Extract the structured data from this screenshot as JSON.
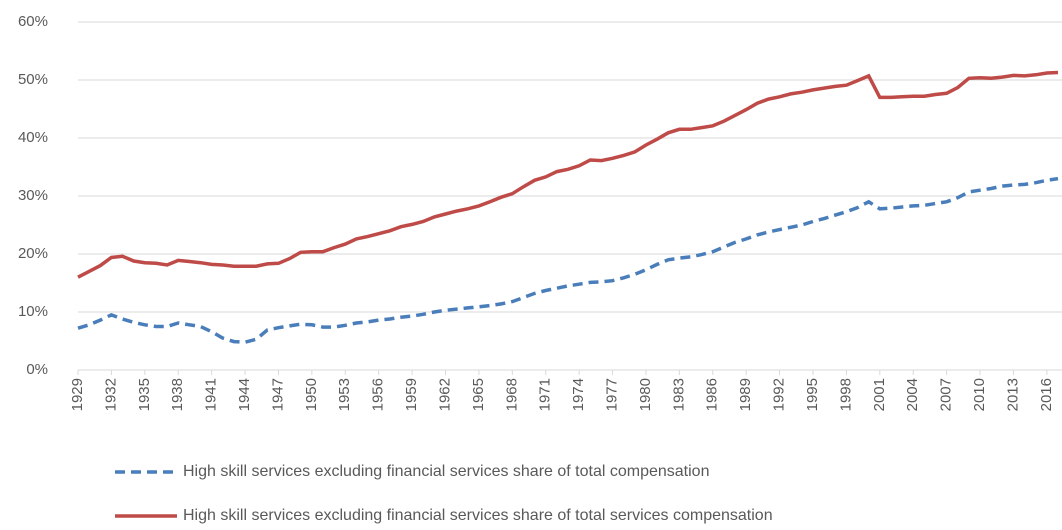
{
  "chart_data": {
    "type": "line",
    "x": [
      1929,
      1930,
      1931,
      1932,
      1933,
      1934,
      1935,
      1936,
      1937,
      1938,
      1939,
      1940,
      1941,
      1942,
      1943,
      1944,
      1945,
      1946,
      1947,
      1948,
      1949,
      1950,
      1951,
      1952,
      1953,
      1954,
      1955,
      1956,
      1957,
      1958,
      1959,
      1960,
      1961,
      1962,
      1963,
      1964,
      1965,
      1966,
      1967,
      1968,
      1969,
      1970,
      1971,
      1972,
      1973,
      1974,
      1975,
      1976,
      1977,
      1978,
      1979,
      1980,
      1981,
      1982,
      1983,
      1984,
      1985,
      1986,
      1987,
      1988,
      1989,
      1990,
      1991,
      1992,
      1993,
      1994,
      1995,
      1996,
      1997,
      1998,
      1999,
      2000,
      2001,
      2002,
      2003,
      2004,
      2005,
      2006,
      2007,
      2008,
      2009,
      2010,
      2011,
      2012,
      2013,
      2014,
      2015,
      2016,
      2017
    ],
    "series": [
      {
        "name": "High skill services excluding financial services share of total compensation",
        "color": "#4a7ebb",
        "dash": true,
        "values": [
          7.2,
          7.8,
          8.6,
          9.5,
          8.8,
          8.2,
          7.8,
          7.5,
          7.5,
          8.1,
          7.8,
          7.5,
          6.6,
          5.5,
          4.9,
          4.8,
          5.3,
          6.9,
          7.3,
          7.6,
          7.9,
          7.8,
          7.4,
          7.4,
          7.7,
          8.1,
          8.3,
          8.6,
          8.8,
          9.1,
          9.3,
          9.6,
          10,
          10.3,
          10.5,
          10.7,
          10.9,
          11.1,
          11.4,
          11.8,
          12.5,
          13.2,
          13.7,
          14.1,
          14.5,
          14.8,
          15.1,
          15.2,
          15.4,
          15.9,
          16.5,
          17.3,
          18.2,
          19,
          19.3,
          19.5,
          19.9,
          20.4,
          21.2,
          22,
          22.6,
          23.3,
          23.8,
          24.2,
          24.6,
          25,
          25.6,
          26.1,
          26.7,
          27.3,
          28,
          29,
          27.8,
          27.9,
          28.1,
          28.3,
          28.4,
          28.7,
          29,
          29.7,
          30.7,
          31,
          31.3,
          31.7,
          31.9,
          32,
          32.3,
          32.7,
          33
        ]
      },
      {
        "name": "High skill services excluding financial services share of total services compensation",
        "color": "#be4b48",
        "dash": false,
        "values": [
          16,
          17,
          18,
          19.4,
          19.6,
          18.8,
          18.5,
          18.4,
          18.1,
          18.9,
          18.7,
          18.5,
          18.2,
          18.1,
          17.9,
          17.9,
          17.9,
          18.3,
          18.4,
          19.2,
          20.3,
          20.4,
          20.4,
          21.1,
          21.7,
          22.6,
          23,
          23.5,
          24,
          24.7,
          25.1,
          25.6,
          26.4,
          26.9,
          27.4,
          27.8,
          28.3,
          29,
          29.8,
          30.4,
          31.6,
          32.7,
          33.3,
          34.2,
          34.6,
          35.2,
          36.2,
          36.1,
          36.5,
          37,
          37.6,
          38.8,
          39.8,
          40.9,
          41.5,
          41.5,
          41.8,
          42.1,
          42.9,
          43.9,
          44.9,
          46,
          46.7,
          47.1,
          47.6,
          47.9,
          48.3,
          48.6,
          48.9,
          49.1,
          49.9,
          50.7,
          47,
          47,
          47.1,
          47.2,
          47.2,
          47.5,
          47.7,
          48.7,
          50.3,
          50.4,
          50.3,
          50.5,
          50.8,
          50.7,
          50.9,
          51.2,
          51.3
        ]
      }
    ],
    "xlim": [
      1929,
      2017
    ],
    "xticks": [
      1929,
      1932,
      1935,
      1938,
      1941,
      1944,
      1947,
      1950,
      1953,
      1956,
      1959,
      1962,
      1965,
      1968,
      1971,
      1974,
      1977,
      1980,
      1983,
      1986,
      1989,
      1992,
      1995,
      1998,
      2001,
      2004,
      2007,
      2010,
      2013,
      2016
    ],
    "ylim": [
      0,
      60
    ],
    "yticks": [
      {
        "value": 0,
        "label": "0%"
      },
      {
        "value": 10,
        "label": "10%"
      },
      {
        "value": 20,
        "label": "20%"
      },
      {
        "value": 30,
        "label": "30%"
      },
      {
        "value": 40,
        "label": "40%"
      },
      {
        "value": 50,
        "label": "50%"
      },
      {
        "value": 60,
        "label": "60%"
      }
    ],
    "grid": true
  }
}
